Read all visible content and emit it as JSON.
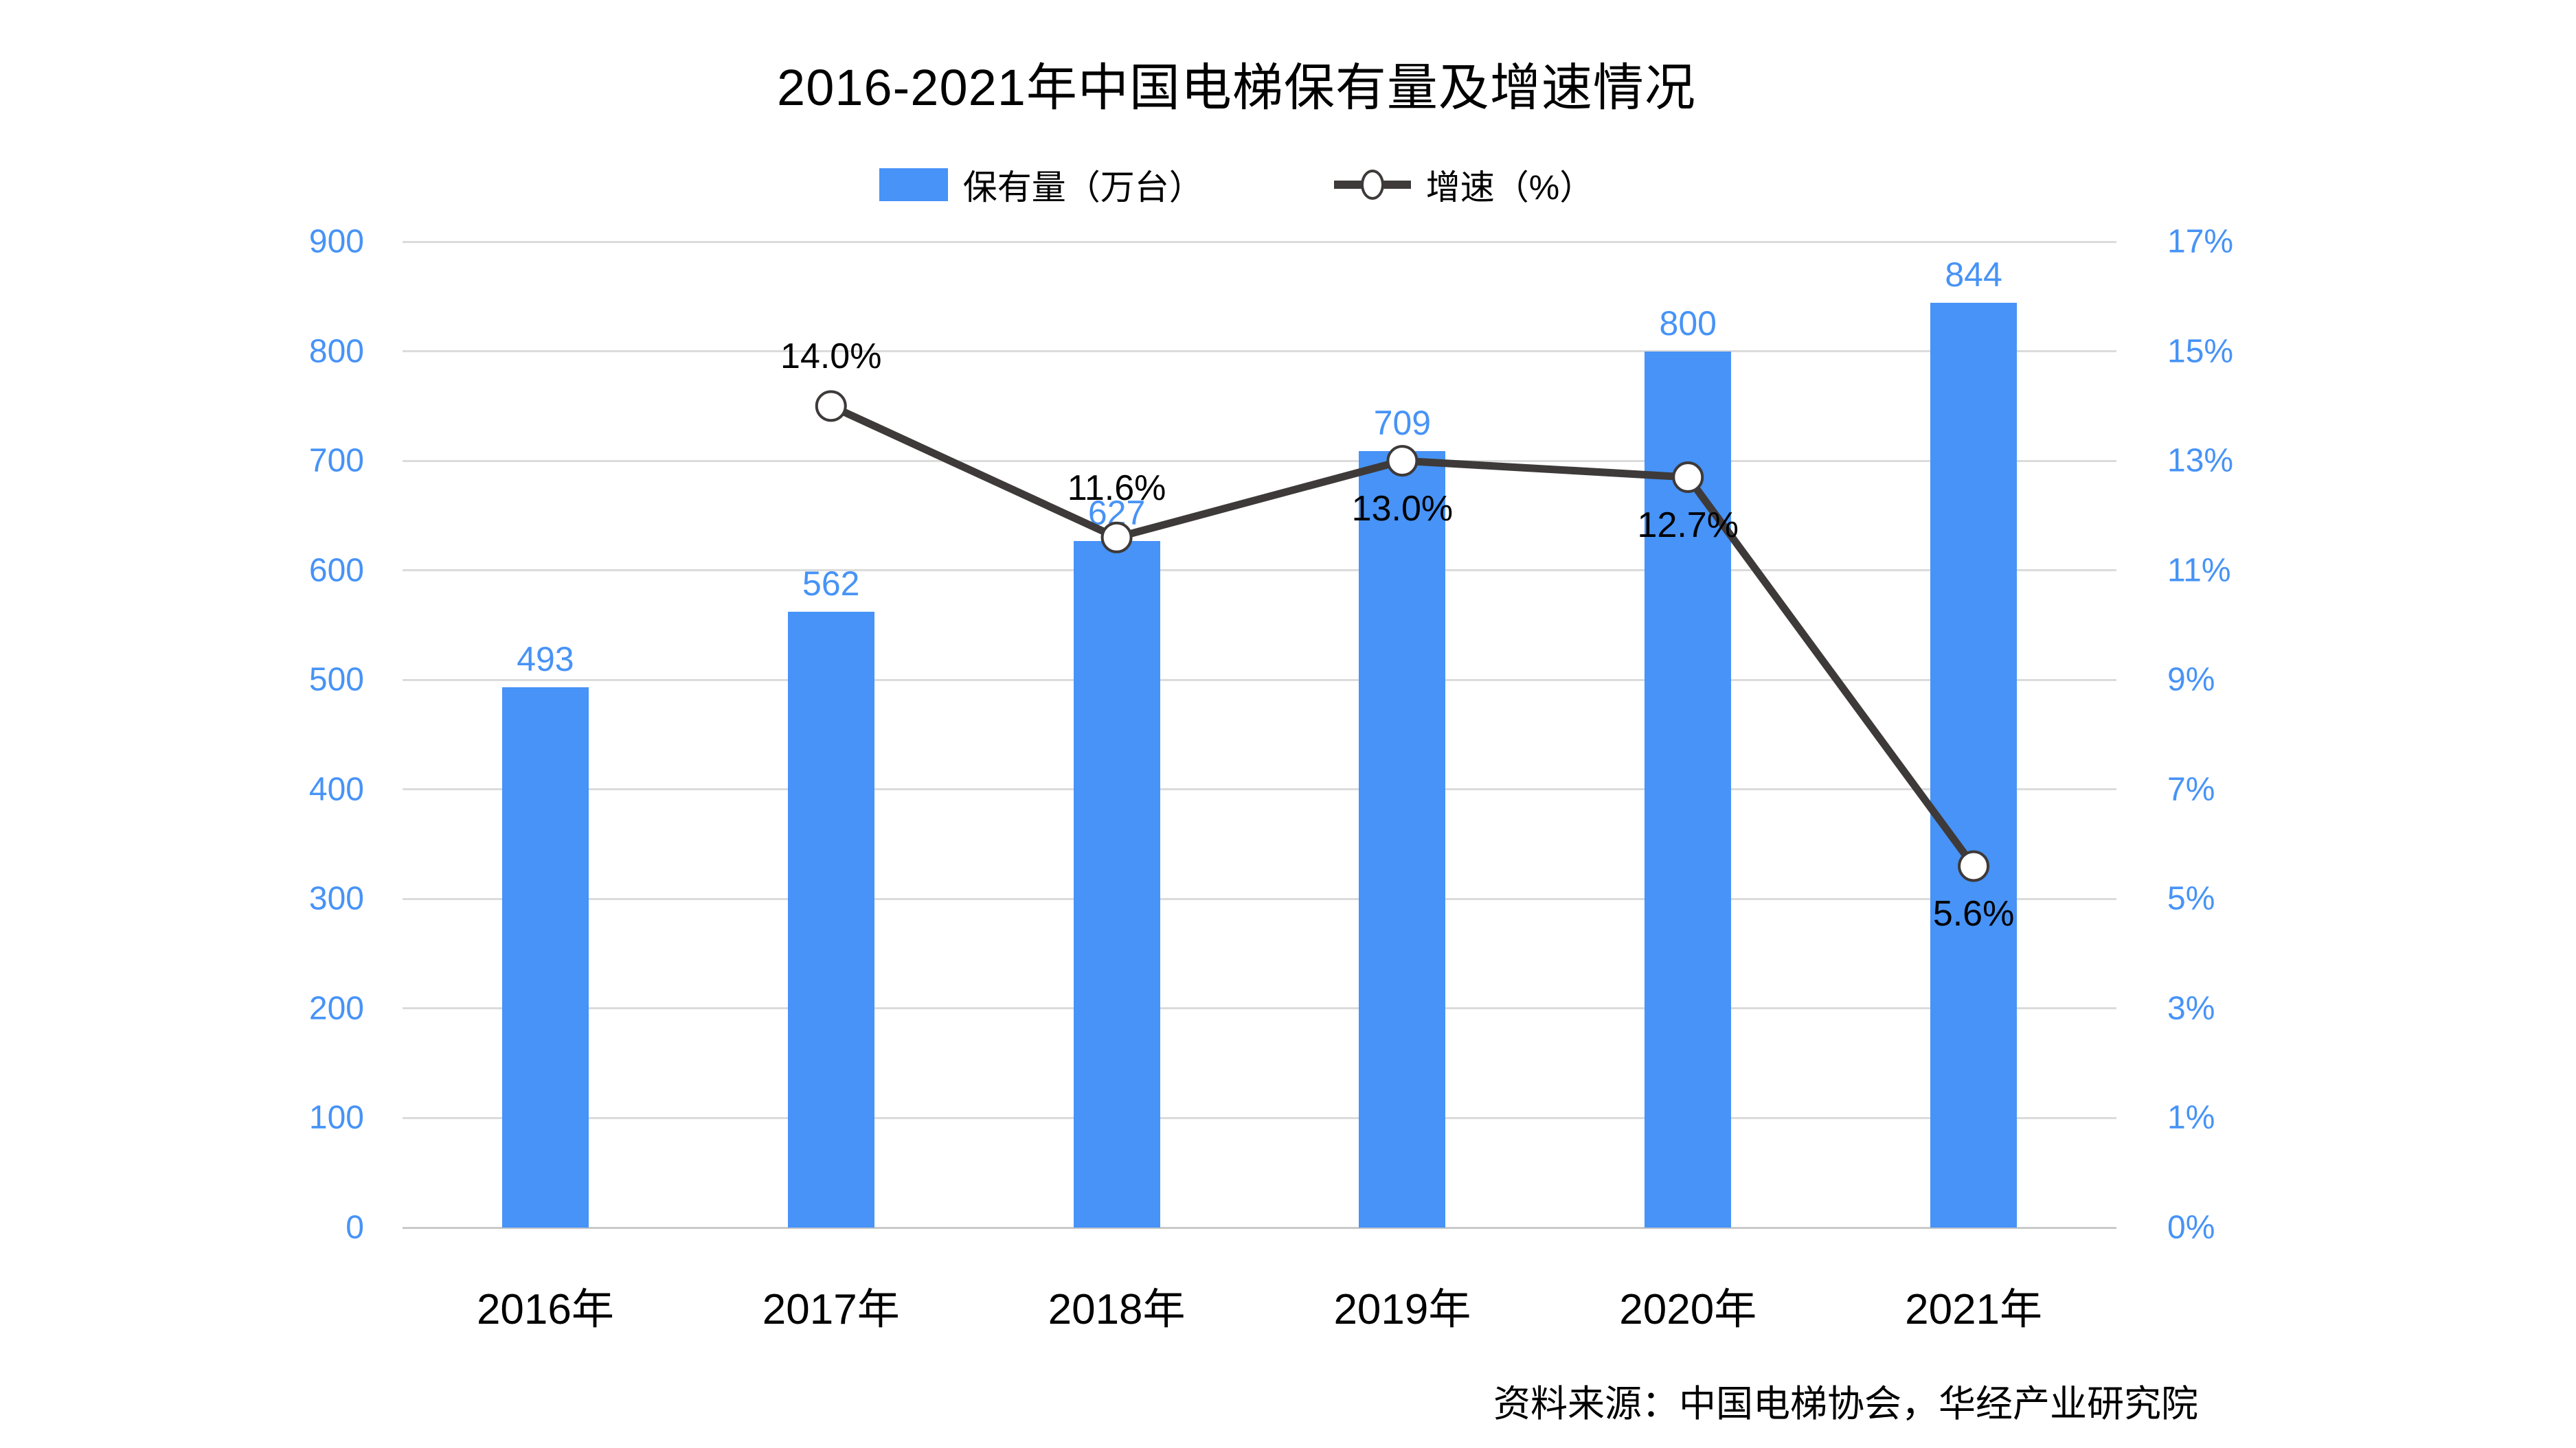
{
  "title": "2016-2021年中国电梯保有量及增速情况",
  "source_note": "资料来源：中国电梯协会，华经产业研究院",
  "legend": {
    "items": [
      {
        "label": "保有量（万台）",
        "marker": "bar-swatch-icon"
      },
      {
        "label": "增速（%）",
        "marker": "line-circle-marker-icon"
      }
    ]
  },
  "colors": {
    "bar": "#4793F7",
    "bar_label": "#4793F7",
    "line": "#3E3A39",
    "marker_fill": "#FFFFFF",
    "axis_label": "#4793F7",
    "grid": "#DBDBDB",
    "zero_line": "#C9C9C9",
    "text": "#000000",
    "background": "#FFFFFF"
  },
  "chart_data": {
    "type": "bar+line",
    "categories": [
      "2016年",
      "2017年",
      "2018年",
      "2019年",
      "2020年",
      "2021年"
    ],
    "series": [
      {
        "name": "保有量（万台）",
        "type": "bar",
        "axis": "left",
        "values": [
          493,
          562,
          627,
          709,
          800,
          844
        ],
        "data_labels": [
          "493",
          "562",
          "627",
          "709",
          "800",
          "844"
        ]
      },
      {
        "name": "增速（%）",
        "type": "line",
        "axis": "right",
        "values": [
          null,
          14.0,
          11.6,
          13.0,
          12.7,
          5.6
        ],
        "data_labels": [
          null,
          "14.0%",
          "11.6%",
          "13.0%",
          "12.7%",
          "5.6%"
        ],
        "label_placement": [
          null,
          "above",
          "above",
          "below",
          "below",
          "below"
        ]
      }
    ],
    "left_axis": {
      "min": 0,
      "max": 900,
      "ticks": [
        "0",
        "100",
        "200",
        "300",
        "400",
        "500",
        "600",
        "700",
        "800",
        "900"
      ]
    },
    "right_axis": {
      "ticks": [
        "0%",
        "1%",
        "3%",
        "5%",
        "7%",
        "9%",
        "11%",
        "13%",
        "15%",
        "17%"
      ],
      "tick_values": [
        0,
        1,
        3,
        5,
        7,
        9,
        11,
        13,
        15,
        17
      ]
    },
    "grid": true,
    "legend_position": "top",
    "title": "2016-2021年中国电梯保有量及增速情况"
  }
}
